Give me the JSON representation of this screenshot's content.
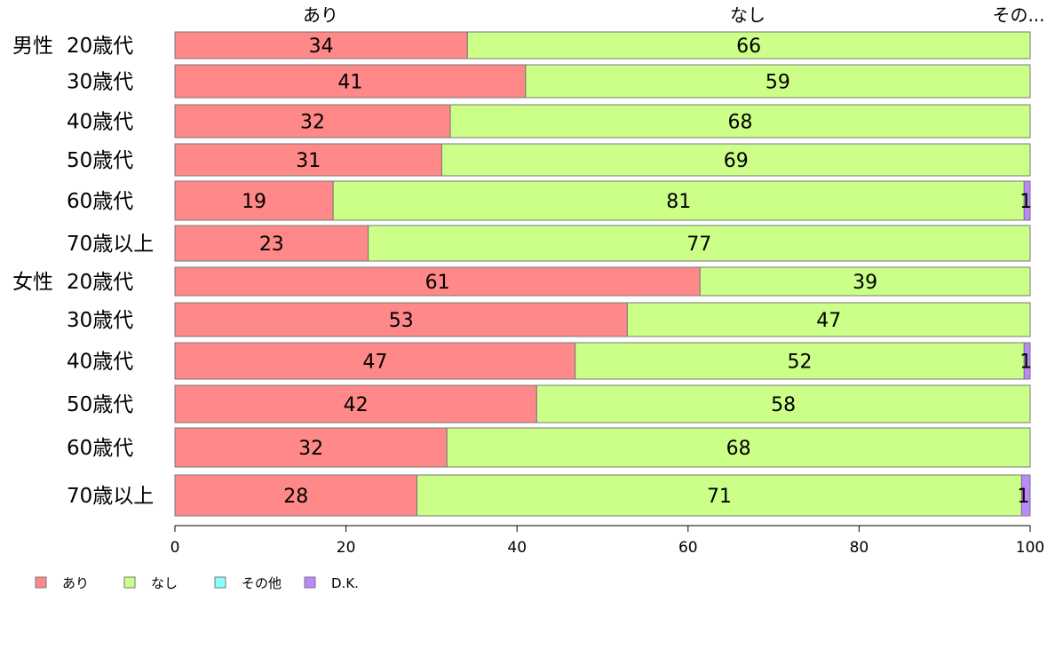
{
  "chart_data": {
    "type": "bar",
    "orientation": "horizontal",
    "stacked": true,
    "title": "",
    "xlabel": "",
    "ylabel": "",
    "xlim": [
      0,
      100
    ],
    "x_ticks": [
      0,
      20,
      40,
      60,
      80,
      100
    ],
    "grid": false,
    "legend_position": "bottom-left",
    "top_labels": [
      "あり",
      "なし",
      "その..."
    ],
    "categories": [
      {
        "group": "男性",
        "label": "20歳代"
      },
      {
        "group": "",
        "label": "30歳代"
      },
      {
        "group": "",
        "label": "40歳代"
      },
      {
        "group": "",
        "label": "50歳代"
      },
      {
        "group": "",
        "label": "60歳代"
      },
      {
        "group": "",
        "label": "70歳以上"
      },
      {
        "group": "女性",
        "label": "20歳代"
      },
      {
        "group": "",
        "label": "30歳代"
      },
      {
        "group": "",
        "label": "40歳代"
      },
      {
        "group": "",
        "label": "50歳代"
      },
      {
        "group": "",
        "label": "60歳代"
      },
      {
        "group": "",
        "label": "70歳以上"
      }
    ],
    "series": [
      {
        "name": "あり",
        "color": "#ff8888",
        "values": [
          34.2,
          41,
          32.2,
          31.2,
          18.5,
          22.6,
          61.4,
          52.9,
          46.8,
          42.3,
          31.8,
          28.3
        ]
      },
      {
        "name": "なし",
        "color": "#ccff88",
        "values": [
          65.8,
          59,
          67.8,
          68.8,
          80.8,
          77.4,
          38.6,
          47.1,
          52.5,
          57.7,
          68.2,
          70.7
        ]
      },
      {
        "name": "その他",
        "color": "#88ffff",
        "values": [
          0,
          0,
          0,
          0,
          0,
          0,
          0,
          0,
          0,
          0,
          0,
          0
        ]
      },
      {
        "name": "D.K.",
        "color": "#bb88ff",
        "values": [
          0,
          0,
          0,
          0,
          0.7,
          0,
          0,
          0,
          0.7,
          0,
          0,
          1.0
        ]
      }
    ],
    "data_labels": [
      [
        "34",
        "66",
        "",
        ""
      ],
      [
        "41",
        "59",
        "",
        ""
      ],
      [
        "32",
        "68",
        "",
        ""
      ],
      [
        "31",
        "69",
        "",
        ""
      ],
      [
        "19",
        "81",
        "",
        "1"
      ],
      [
        "23",
        "77",
        "",
        ""
      ],
      [
        "61",
        "39",
        "",
        ""
      ],
      [
        "53",
        "47",
        "",
        ""
      ],
      [
        "47",
        "52",
        "",
        "1"
      ],
      [
        "42",
        "58",
        "",
        ""
      ],
      [
        "32",
        "68",
        "",
        ""
      ],
      [
        "28",
        "71",
        "",
        "1"
      ]
    ]
  }
}
